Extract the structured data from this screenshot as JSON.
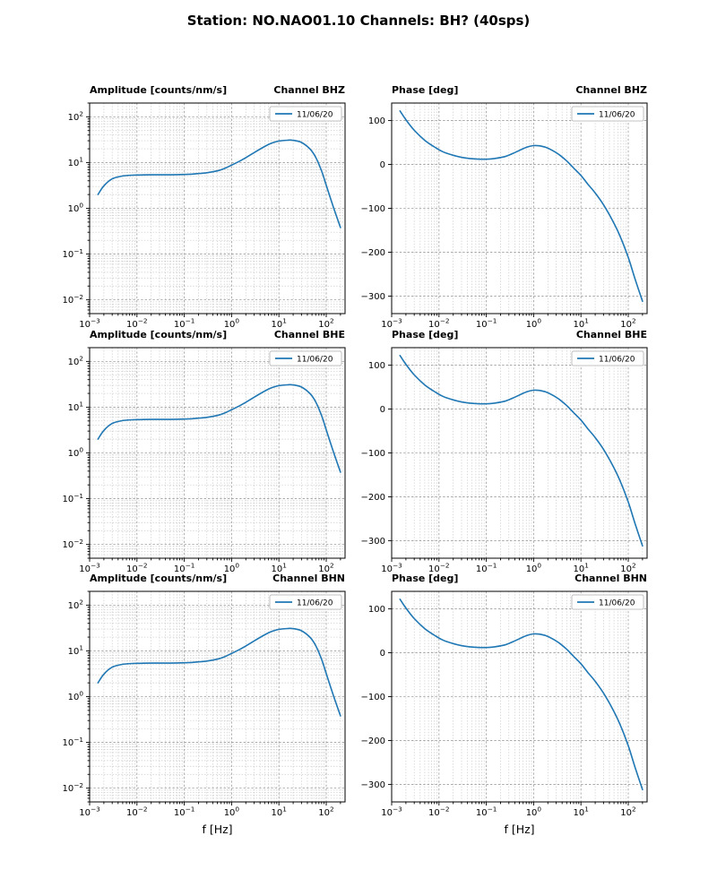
{
  "figure": {
    "title": "Station: NO.NAO01.10 Channels: BH? (40sps)",
    "xlabel": "f [Hz]",
    "legend_label": "11/06/20",
    "line_color": "#1f77b4"
  },
  "chart_data": [
    {
      "type": "line",
      "channel": "BHZ",
      "title_left": "Amplitude [counts/nm/s]",
      "title_right": "Channel BHZ",
      "xscale": "log",
      "yscale": "log",
      "xlim": [
        0.001,
        250
      ],
      "ylim": [
        0.005,
        200
      ],
      "legend": "11/06/20",
      "line_color": "#1f77b4",
      "x": [
        0.0015,
        0.002,
        0.003,
        0.005,
        0.008,
        0.012,
        0.02,
        0.04,
        0.07,
        0.1,
        0.15,
        0.2,
        0.3,
        0.5,
        0.7,
        1,
        1.5,
        2,
        3,
        5,
        7,
        10,
        15,
        20,
        30,
        45,
        60,
        80,
        100,
        140,
        200
      ],
      "y": [
        2.0,
        3.1,
        4.4,
        5.1,
        5.3,
        5.35,
        5.4,
        5.4,
        5.45,
        5.5,
        5.6,
        5.75,
        6.0,
        6.6,
        7.4,
        8.8,
        10.8,
        12.8,
        16.5,
        22.5,
        26.5,
        29.5,
        30.8,
        30.7,
        27.5,
        20,
        13,
        6.5,
        3.2,
        1.1,
        0.38
      ]
    },
    {
      "type": "line",
      "channel": "BHZ",
      "title_left": "Phase [deg]",
      "title_right": "Channel BHZ",
      "xscale": "log",
      "yscale": "linear",
      "xlim": [
        0.001,
        250
      ],
      "ylim": [
        -340,
        140
      ],
      "yticks": [
        -300,
        -200,
        -100,
        0,
        100
      ],
      "legend": "11/06/20",
      "line_color": "#1f77b4",
      "x": [
        0.0015,
        0.002,
        0.003,
        0.005,
        0.008,
        0.012,
        0.02,
        0.035,
        0.06,
        0.1,
        0.15,
        0.25,
        0.4,
        0.6,
        0.8,
        1,
        1.3,
        1.8,
        2.5,
        3.5,
        5,
        7,
        10,
        14,
        20,
        30,
        45,
        65,
        100,
        140,
        200
      ],
      "y": [
        122,
        102,
        78,
        55,
        40,
        29,
        21,
        15,
        12.5,
        12,
        13.5,
        18,
        27,
        36,
        41,
        43,
        42.5,
        39,
        32,
        22,
        8,
        -8,
        -25,
        -45,
        -65,
        -92,
        -125,
        -160,
        -212,
        -262,
        -312
      ]
    },
    {
      "type": "line",
      "channel": "BHE",
      "title_left": "Amplitude [counts/nm/s]",
      "title_right": "Channel BHE",
      "xscale": "log",
      "yscale": "log",
      "xlim": [
        0.001,
        250
      ],
      "ylim": [
        0.005,
        200
      ],
      "legend": "11/06/20",
      "line_color": "#1f77b4",
      "x": [
        0.0015,
        0.002,
        0.003,
        0.005,
        0.008,
        0.012,
        0.02,
        0.04,
        0.07,
        0.1,
        0.15,
        0.2,
        0.3,
        0.5,
        0.7,
        1,
        1.5,
        2,
        3,
        5,
        7,
        10,
        15,
        20,
        30,
        45,
        60,
        80,
        100,
        140,
        200
      ],
      "y": [
        2.0,
        3.1,
        4.4,
        5.1,
        5.3,
        5.35,
        5.4,
        5.4,
        5.45,
        5.5,
        5.6,
        5.75,
        6.0,
        6.6,
        7.4,
        8.8,
        10.8,
        12.8,
        16.5,
        22.5,
        26.5,
        29.5,
        30.8,
        30.7,
        27.5,
        20,
        13,
        6.5,
        3.2,
        1.1,
        0.38
      ]
    },
    {
      "type": "line",
      "channel": "BHE",
      "title_left": "Phase [deg]",
      "title_right": "Channel BHE",
      "xscale": "log",
      "yscale": "linear",
      "xlim": [
        0.001,
        250
      ],
      "ylim": [
        -340,
        140
      ],
      "yticks": [
        -300,
        -200,
        -100,
        0,
        100
      ],
      "legend": "11/06/20",
      "line_color": "#1f77b4",
      "x": [
        0.0015,
        0.002,
        0.003,
        0.005,
        0.008,
        0.012,
        0.02,
        0.035,
        0.06,
        0.1,
        0.15,
        0.25,
        0.4,
        0.6,
        0.8,
        1,
        1.3,
        1.8,
        2.5,
        3.5,
        5,
        7,
        10,
        14,
        20,
        30,
        45,
        65,
        100,
        140,
        200
      ],
      "y": [
        122,
        102,
        78,
        55,
        40,
        29,
        21,
        15,
        12.5,
        12,
        13.5,
        18,
        27,
        36,
        41,
        43,
        42.5,
        39,
        32,
        22,
        8,
        -8,
        -25,
        -45,
        -65,
        -92,
        -125,
        -160,
        -212,
        -262,
        -312
      ]
    },
    {
      "type": "line",
      "channel": "BHN",
      "title_left": "Amplitude [counts/nm/s]",
      "title_right": "Channel BHN",
      "xscale": "log",
      "yscale": "log",
      "xlim": [
        0.001,
        250
      ],
      "ylim": [
        0.005,
        200
      ],
      "legend": "11/06/20",
      "line_color": "#1f77b4",
      "x": [
        0.0015,
        0.002,
        0.003,
        0.005,
        0.008,
        0.012,
        0.02,
        0.04,
        0.07,
        0.1,
        0.15,
        0.2,
        0.3,
        0.5,
        0.7,
        1,
        1.5,
        2,
        3,
        5,
        7,
        10,
        15,
        20,
        30,
        45,
        60,
        80,
        100,
        140,
        200
      ],
      "y": [
        2.0,
        3.1,
        4.4,
        5.1,
        5.3,
        5.35,
        5.4,
        5.4,
        5.45,
        5.5,
        5.6,
        5.75,
        6.0,
        6.6,
        7.4,
        8.8,
        10.8,
        12.8,
        16.5,
        22.5,
        26.5,
        29.5,
        30.8,
        30.7,
        27.5,
        20,
        13,
        6.5,
        3.2,
        1.1,
        0.38
      ]
    },
    {
      "type": "line",
      "channel": "BHN",
      "title_left": "Phase [deg]",
      "title_right": "Channel BHN",
      "xscale": "log",
      "yscale": "linear",
      "xlim": [
        0.001,
        250
      ],
      "ylim": [
        -340,
        140
      ],
      "yticks": [
        -300,
        -200,
        -100,
        0,
        100
      ],
      "legend": "11/06/20",
      "line_color": "#1f77b4",
      "x": [
        0.0015,
        0.002,
        0.003,
        0.005,
        0.008,
        0.012,
        0.02,
        0.035,
        0.06,
        0.1,
        0.15,
        0.25,
        0.4,
        0.6,
        0.8,
        1,
        1.3,
        1.8,
        2.5,
        3.5,
        5,
        7,
        10,
        14,
        20,
        30,
        45,
        65,
        100,
        140,
        200
      ],
      "y": [
        122,
        102,
        78,
        55,
        40,
        29,
        21,
        15,
        12.5,
        12,
        13.5,
        18,
        27,
        36,
        41,
        43,
        42.5,
        39,
        32,
        22,
        8,
        -8,
        -25,
        -45,
        -65,
        -92,
        -125,
        -160,
        -212,
        -262,
        -312
      ]
    }
  ]
}
